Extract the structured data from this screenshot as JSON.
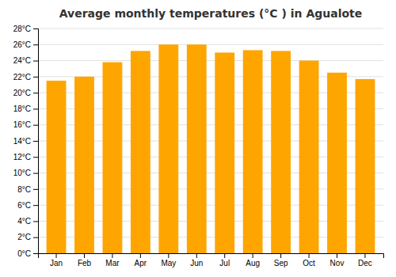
{
  "chart_data": {
    "type": "bar",
    "title": "Average monthly temperatures (°C ) in Agualote",
    "categories": [
      "Jan",
      "Feb",
      "Mar",
      "Apr",
      "May",
      "Jun",
      "Jul",
      "Aug",
      "Sep",
      "Oct",
      "Nov",
      "Dec"
    ],
    "values": [
      21.5,
      22.0,
      23.8,
      25.2,
      26.0,
      26.0,
      25.0,
      25.3,
      25.2,
      24.0,
      22.5,
      21.7
    ],
    "color": "#FFA500",
    "ylim": [
      0,
      28
    ],
    "yticks": [
      {
        "value": 0,
        "label": "0°C"
      },
      {
        "value": 2,
        "label": "2°C"
      },
      {
        "value": 4,
        "label": "4°C"
      },
      {
        "value": 6,
        "label": "6°C"
      },
      {
        "value": 8,
        "label": "8°C"
      },
      {
        "value": 10,
        "label": "10°C"
      },
      {
        "value": 12,
        "label": "12°C"
      },
      {
        "value": 14,
        "label": "14°C"
      },
      {
        "value": 16,
        "label": "16°C"
      },
      {
        "value": 18,
        "label": "18°C"
      },
      {
        "value": 20,
        "label": "20°C"
      },
      {
        "value": 22,
        "label": "22°C"
      },
      {
        "value": 24,
        "label": "24°C"
      },
      {
        "value": 26,
        "label": "26°C"
      },
      {
        "value": 28,
        "label": "28°C"
      }
    ],
    "grid": true
  }
}
